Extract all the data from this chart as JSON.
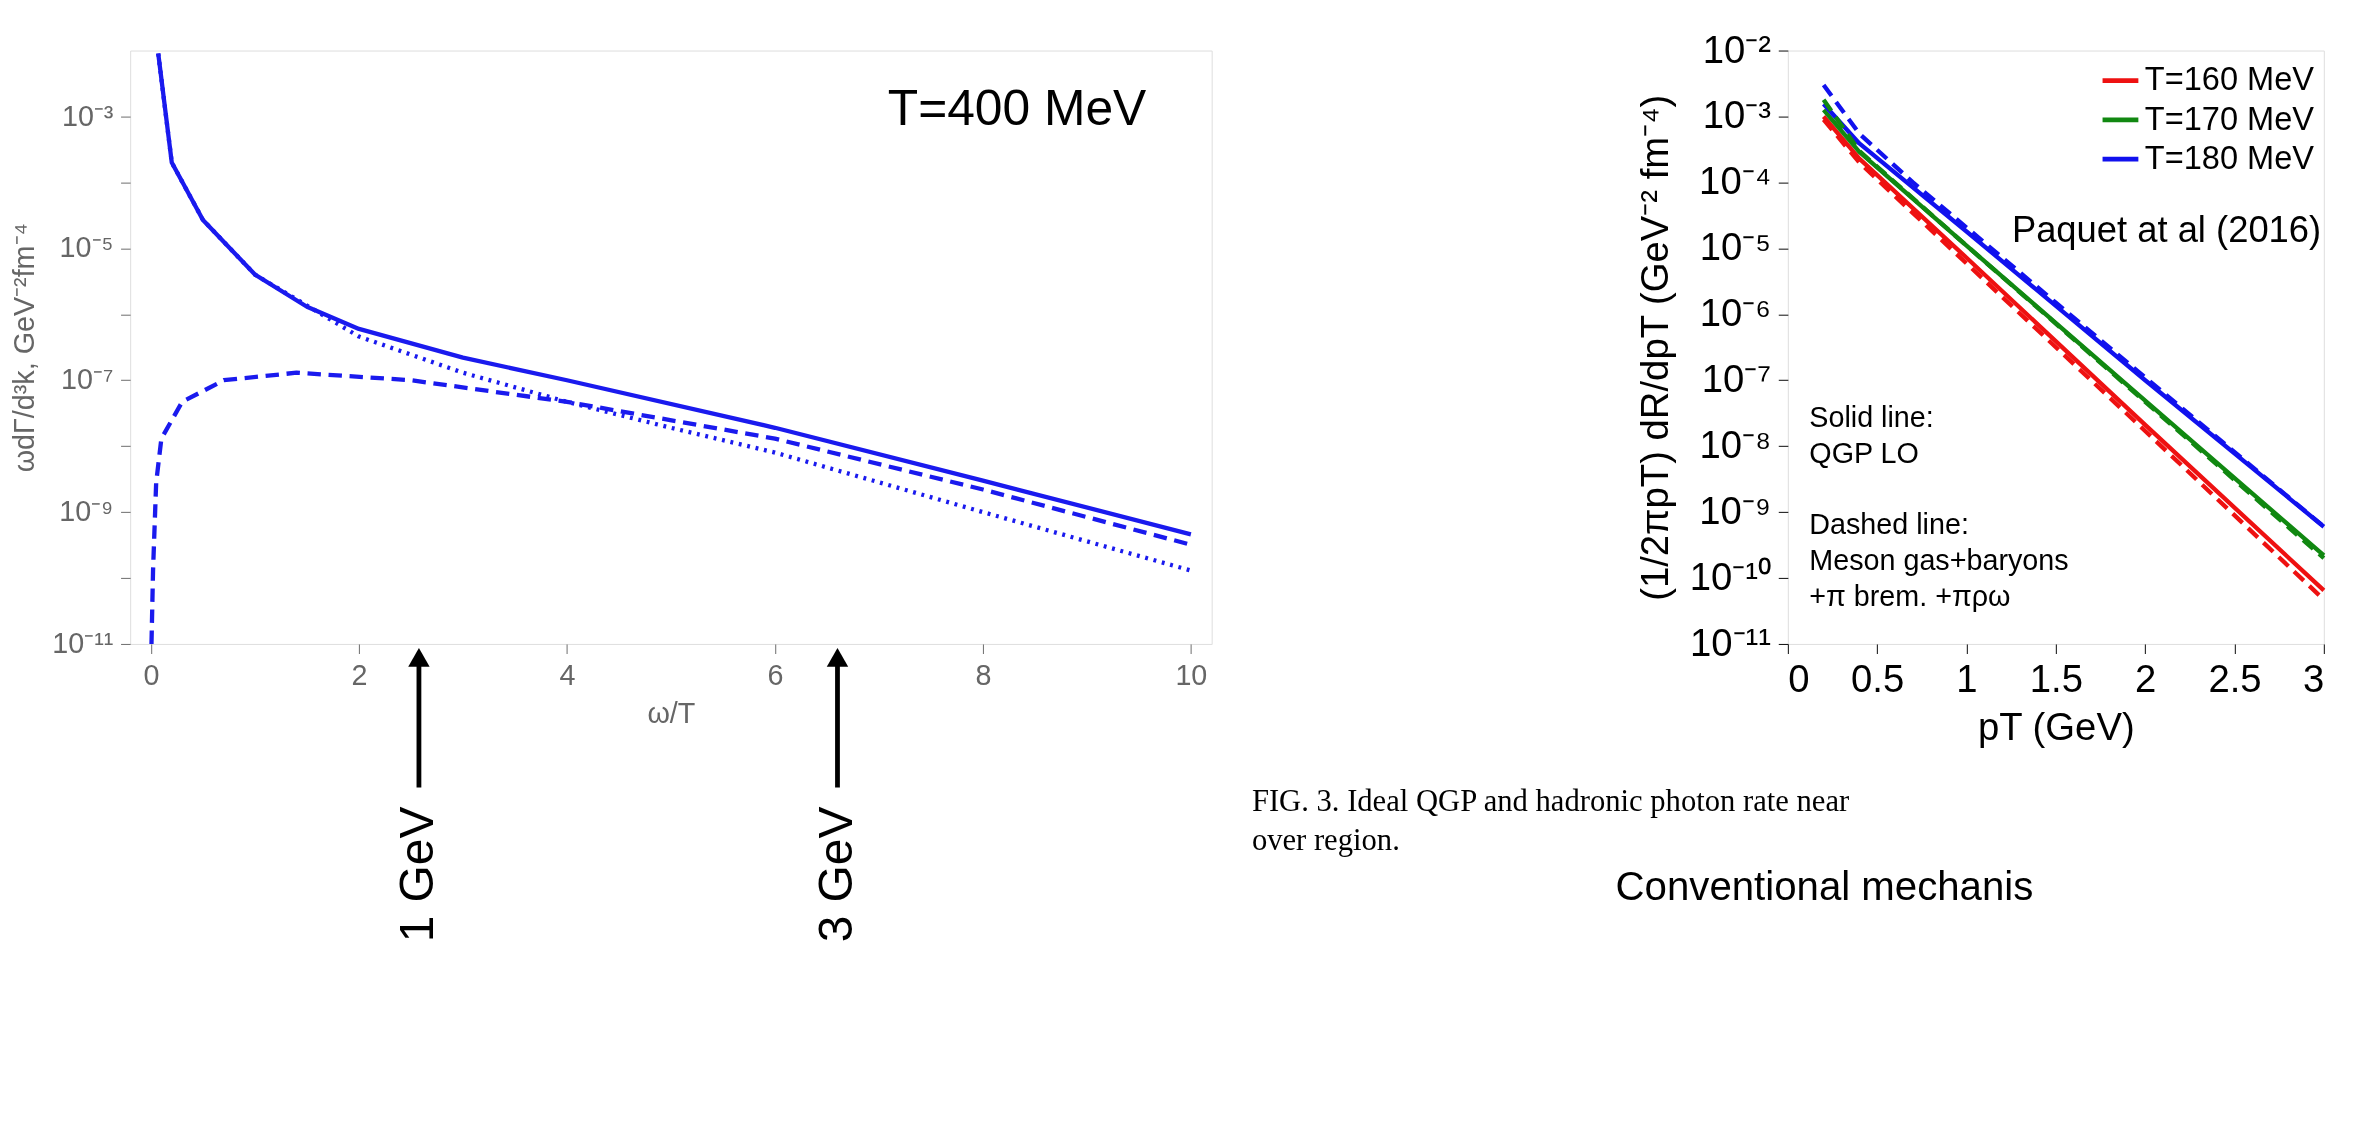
{
  "chart_data": [
    {
      "type": "line",
      "xlabel": "ω/T",
      "ylabel": "ωdΓ/d³k, GeV⁻²fm⁻⁴",
      "xlim": [
        -0.2,
        10.2
      ],
      "ylim": [
        1e-11,
        0.01
      ],
      "log": true,
      "grid": false,
      "legend": false,
      "xticks": [
        0,
        2,
        4,
        6,
        8,
        10
      ],
      "yticks": [
        {
          "value": 1e-11,
          "label": "10⁻¹¹"
        },
        {
          "value": 1e-10,
          "label": null
        },
        {
          "value": 1e-09,
          "label": "10⁻⁹"
        },
        {
          "value": 1e-08,
          "label": null
        },
        {
          "value": 1e-07,
          "label": "10⁻⁷"
        },
        {
          "value": 1e-06,
          "label": null
        },
        {
          "value": 1e-05,
          "label": "10⁻⁵"
        },
        {
          "value": 0.0001,
          "label": null
        },
        {
          "value": 0.001,
          "label": "10⁻³"
        }
      ],
      "series": [
        {
          "color": "#1a1aee",
          "line_style": "solid",
          "x": [
            0.07,
            0.2,
            0.5,
            1,
            1.5,
            2,
            3,
            4,
            6,
            8,
            10
          ],
          "values": [
            0.009,
            0.0002,
            2.7e-05,
            4e-06,
            1.3e-06,
            6e-07,
            2.2e-07,
            1e-07,
            1.9e-08,
            3e-09,
            4.6e-10
          ]
        },
        {
          "color": "#1a1aee",
          "line_style": "dashed",
          "x": [
            0.005,
            0.02,
            0.05,
            0.1,
            0.3,
            0.7,
            1.4,
            2.5,
            4,
            6,
            8,
            10
          ],
          "values": [
            1e-11,
            1.3e-10,
            2.8e-09,
            1.3e-08,
            4.7e-08,
            1e-07,
            1.3e-07,
            1e-07,
            4.7e-08,
            1.3e-08,
            2.2e-09,
            3.2e-10
          ]
        },
        {
          "color": "#1a1aee",
          "line_style": "dotted",
          "x": [
            0.07,
            0.2,
            0.5,
            1,
            2,
            3,
            4,
            5,
            6,
            8,
            10
          ],
          "values": [
            0.009,
            0.0002,
            2.7e-05,
            4e-06,
            4.6e-07,
            1.3e-07,
            4.7e-08,
            1.9e-08,
            8e-09,
            1e-09,
            1.3e-10
          ]
        }
      ],
      "annotations": [
        "T=400 MeV",
        "1 GeV",
        "3 GeV"
      ]
    },
    {
      "type": "line",
      "xlabel": "pT (GeV)",
      "ylabel": "(1/2πpT) dR/dpT (GeV⁻² fm⁻⁴)",
      "xlim": [
        0,
        3
      ],
      "ylim": [
        1e-11,
        0.01
      ],
      "log": true,
      "grid": false,
      "legend": "top right",
      "xticks": [
        0,
        0.5,
        1,
        1.5,
        2,
        2.5,
        3
      ],
      "yticks": [
        {
          "value": 1e-11,
          "label": "10⁻¹¹"
        },
        {
          "value": 1e-10,
          "label": "10⁻¹⁰"
        },
        {
          "value": 1e-09,
          "label": "10⁻⁹"
        },
        {
          "value": 1e-08,
          "label": "10⁻⁸"
        },
        {
          "value": 1e-07,
          "label": "10⁻⁷"
        },
        {
          "value": 1e-06,
          "label": "10⁻⁶"
        },
        {
          "value": 1e-05,
          "label": "10⁻⁵"
        },
        {
          "value": 0.0001,
          "label": "10⁻⁴"
        },
        {
          "value": 0.001,
          "label": "10⁻³"
        },
        {
          "value": 0.01,
          "label": "10⁻²"
        }
      ],
      "series": [
        {
          "name": "T=160 MeV",
          "color": "#ee1111",
          "line_style": "solid",
          "x": [
            0.2,
            0.4,
            1,
            2,
            3
          ],
          "values": [
            0.001,
            0.00023,
            7.2e-06,
            2.1e-08,
            6.5e-11
          ]
        },
        {
          "name": "T=170 MeV",
          "color": "#118811",
          "line_style": "solid",
          "x": [
            0.2,
            0.4,
            1,
            2,
            3
          ],
          "values": [
            0.00126,
            0.00029,
            1.1e-05,
            4.9e-08,
            2.2e-10
          ]
        },
        {
          "name": "T=180 MeV",
          "color": "#1111ee",
          "line_style": "solid",
          "x": [
            0.2,
            0.4,
            1,
            2,
            3
          ],
          "values": [
            0.00155,
            0.00039,
            1.8e-05,
            1e-07,
            6e-10
          ]
        },
        {
          "color": "#ee1111",
          "line_style": "dashed",
          "x": [
            0.2,
            0.4,
            1,
            2,
            3
          ],
          "values": [
            0.0009,
            0.0002,
            5.9e-06,
            1.7e-08,
            4.7e-11
          ]
        },
        {
          "color": "#118811",
          "line_style": "dashed",
          "x": [
            0.2,
            0.4,
            1,
            2,
            3
          ],
          "values": [
            0.0018,
            0.0003,
            1.1e-05,
            4.7e-08,
            2e-10
          ]
        },
        {
          "color": "#1111ee",
          "line_style": "dashed",
          "x": [
            0.2,
            0.4,
            0.7,
            1.5,
            3
          ],
          "values": [
            0.003,
            0.00055,
            0.0001,
            1.5e-06,
            6e-10
          ]
        }
      ],
      "annotations": [
        "Paquet at al (2016)",
        "Solid line:\nQGP LO",
        "Dashed line:\nMeson gas+baryons\n+π brem. +πρω",
        "FIG. 3. Ideal QGP and hadronic photon rate near",
        "over region.",
        "Conventional mechanis"
      ]
    }
  ]
}
